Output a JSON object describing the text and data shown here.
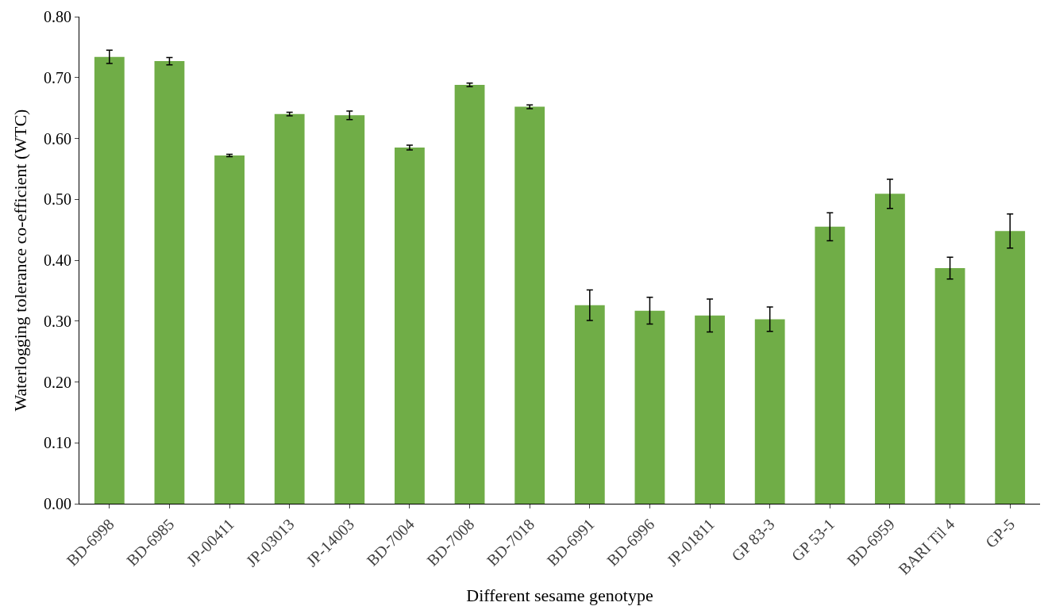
{
  "chart_data": {
    "type": "bar",
    "xlabel": "Different sesame genotype",
    "ylabel": "Waterlogging tolerance co-efficient (WTC)",
    "categories": [
      "BD-6998",
      "BD-6985",
      "JP-00411",
      "JP-03013",
      "JP-14003",
      "BD-7004",
      "BD-7008",
      "BD-7018",
      "BD-6991",
      "BD-6996",
      "JP-01811",
      "GP 83-3",
      "GP 53-1",
      "BD-6959",
      "BARI Til 4",
      "GP-5"
    ],
    "values": [
      0.734,
      0.727,
      0.572,
      0.64,
      0.638,
      0.585,
      0.688,
      0.652,
      0.326,
      0.317,
      0.309,
      0.303,
      0.455,
      0.509,
      0.387,
      0.448
    ],
    "errors": [
      0.011,
      0.006,
      0.002,
      0.003,
      0.007,
      0.004,
      0.003,
      0.003,
      0.025,
      0.022,
      0.027,
      0.02,
      0.023,
      0.024,
      0.018,
      0.028
    ],
    "color": "#70ad47",
    "ylim": [
      0,
      0.8
    ],
    "yticks": [
      {
        "value": 0,
        "label": "0.00"
      },
      {
        "value": 0.1,
        "label": "0.10"
      },
      {
        "value": 0.2,
        "label": "0.20"
      },
      {
        "value": 0.3,
        "label": "0.30"
      },
      {
        "value": 0.4,
        "label": "0.40"
      },
      {
        "value": 0.5,
        "label": "0.50"
      },
      {
        "value": 0.6,
        "label": "0.60"
      },
      {
        "value": 0.7,
        "label": "0.70"
      },
      {
        "value": 0.8,
        "label": "0.80"
      }
    ],
    "grid": false
  }
}
